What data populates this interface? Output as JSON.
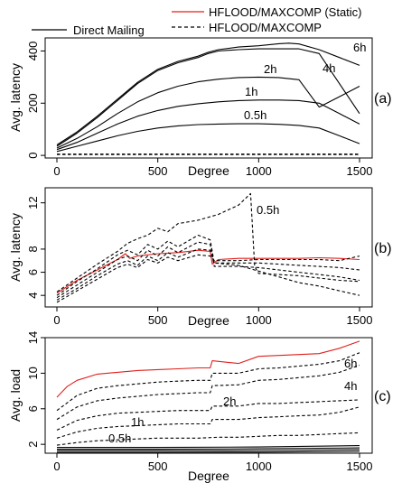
{
  "legend": {
    "entries": [
      {
        "label": "Direct Mailing",
        "style": "solid",
        "color": "#000000"
      },
      {
        "label": "HFLOOD/MAXCOMP (Static)",
        "style": "solid",
        "color": "#e0201b"
      },
      {
        "label": "HFLOOD/MAXCOMP",
        "style": "dashed",
        "color": "#000000"
      }
    ]
  },
  "chart_data": [
    {
      "type": "line",
      "panel_label": "(a)",
      "ylabel": "Avg. latency",
      "xlabel": "Degree",
      "xlim": [
        0,
        1500
      ],
      "ylim": [
        -10,
        450
      ],
      "x_ticks": [
        0,
        500,
        1000,
        1500
      ],
      "y_ticks": [
        0,
        200,
        400
      ],
      "curve_labels": [
        "6h",
        "4h",
        "2h",
        "1h",
        "0.5h"
      ],
      "series": [
        {
          "label": "6h",
          "style": "solid",
          "x": [
            0,
            100,
            200,
            300,
            400,
            500,
            600,
            700,
            750,
            800,
            900,
            1000,
            1100,
            1150,
            1200,
            1300,
            1400,
            1500
          ],
          "y": [
            40,
            90,
            150,
            215,
            280,
            330,
            360,
            380,
            395,
            405,
            415,
            420,
            428,
            430,
            427,
            405,
            375,
            345
          ]
        },
        {
          "label": "4h",
          "style": "solid",
          "x": [
            0,
            100,
            200,
            300,
            400,
            500,
            600,
            700,
            750,
            800,
            900,
            1000,
            1100,
            1200,
            1300,
            1400,
            1500
          ],
          "y": [
            35,
            85,
            145,
            210,
            275,
            325,
            355,
            375,
            390,
            400,
            405,
            408,
            408,
            408,
            390,
            275,
            160
          ]
        },
        {
          "label": "2h",
          "style": "solid",
          "x": [
            0,
            100,
            200,
            300,
            400,
            500,
            600,
            700,
            800,
            900,
            1000,
            1100,
            1200,
            1300,
            1400,
            1500
          ],
          "y": [
            28,
            65,
            110,
            160,
            205,
            240,
            265,
            282,
            292,
            298,
            300,
            298,
            290,
            185,
            225,
            265
          ]
        },
        {
          "label": "1h",
          "style": "solid",
          "x": [
            0,
            100,
            200,
            300,
            400,
            500,
            600,
            700,
            800,
            900,
            1000,
            1100,
            1200,
            1300,
            1400,
            1500
          ],
          "y": [
            22,
            50,
            85,
            120,
            150,
            172,
            188,
            198,
            205,
            210,
            212,
            212,
            210,
            200,
            160,
            120
          ]
        },
        {
          "label": "0.5h",
          "style": "solid",
          "x": [
            0,
            100,
            200,
            300,
            400,
            500,
            600,
            700,
            800,
            900,
            1000,
            1100,
            1200,
            1300,
            1400,
            1500
          ],
          "y": [
            15,
            35,
            55,
            75,
            92,
            105,
            113,
            118,
            120,
            121,
            121,
            119,
            115,
            105,
            75,
            45
          ]
        },
        {
          "label": "HFLOOD/MAXCOMP",
          "style": "dashed",
          "x": [
            0,
            500,
            1000,
            1500
          ],
          "y": [
            5,
            5,
            5,
            5
          ]
        },
        {
          "label": "HFLOOD/MAXCOMP",
          "style": "dashed",
          "x": [
            0,
            500,
            1000,
            1500
          ],
          "y": [
            3,
            3,
            3,
            3
          ]
        }
      ]
    },
    {
      "type": "line",
      "panel_label": "(b)",
      "ylabel": "Avg. latency",
      "xlabel": "Degree",
      "xlim": [
        0,
        1500
      ],
      "ylim": [
        3,
        13.3
      ],
      "x_ticks": [
        0,
        500,
        1000,
        1500
      ],
      "y_ticks": [
        4,
        6,
        8,
        12
      ],
      "curve_labels": [
        "0.5h"
      ],
      "series": [
        {
          "label": "HFLOOD/MAXCOMP (Static)",
          "style": "solid",
          "color": "#e0201b",
          "x": [
            0,
            100,
            200,
            300,
            340,
            360,
            400,
            500,
            600,
            700,
            760,
            770,
            800,
            900,
            1000,
            1100,
            1200,
            1300,
            1400,
            1500
          ],
          "y": [
            4.2,
            5.3,
            6.2,
            7.1,
            7.6,
            7.2,
            7.4,
            7.6,
            7.7,
            7.9,
            7.8,
            6.7,
            7.1,
            7.2,
            7.2,
            7.2,
            7.2,
            7.25,
            7.2,
            7.1
          ]
        },
        {
          "label": "0.5h",
          "style": "dashed",
          "x": [
            0,
            100,
            200,
            300,
            350,
            400,
            450,
            500,
            550,
            600,
            700,
            800,
            900,
            960,
            980,
            1000,
            1100,
            1200,
            1300,
            1400,
            1500
          ],
          "y": [
            4.3,
            5.5,
            6.7,
            7.8,
            8.5,
            8.9,
            9.2,
            9.8,
            9.5,
            10.2,
            10.5,
            11.0,
            11.8,
            12.8,
            6.5,
            5.9,
            5.8,
            5.7,
            5.5,
            5.3,
            5.2
          ]
        },
        {
          "label": "1h",
          "style": "dashed",
          "x": [
            0,
            100,
            200,
            300,
            350,
            400,
            450,
            500,
            550,
            600,
            700,
            760,
            780,
            900,
            1000,
            1100,
            1200,
            1300,
            1400,
            1500
          ],
          "y": [
            4.0,
            5.2,
            6.3,
            7.5,
            7.9,
            7.5,
            8.4,
            8.0,
            8.7,
            8.2,
            9.2,
            8.8,
            6.8,
            6.6,
            6.1,
            5.6,
            5.1,
            4.8,
            4.4,
            4.0
          ]
        },
        {
          "label": "2h",
          "style": "dashed",
          "x": [
            0,
            100,
            200,
            300,
            350,
            400,
            450,
            500,
            550,
            600,
            700,
            760,
            780,
            900,
            1000,
            1100,
            1200,
            1300,
            1400,
            1500
          ],
          "y": [
            3.8,
            4.9,
            6.0,
            7.1,
            7.4,
            7.0,
            7.9,
            7.4,
            8.2,
            7.7,
            8.6,
            8.4,
            6.5,
            6.5,
            6.4,
            6.2,
            6.0,
            5.8,
            5.6,
            5.3
          ]
        },
        {
          "label": "4h",
          "style": "dashed",
          "x": [
            0,
            100,
            200,
            300,
            350,
            400,
            450,
            500,
            550,
            600,
            700,
            760,
            780,
            900,
            1000,
            1100,
            1200,
            1300,
            1400,
            1500
          ],
          "y": [
            3.6,
            4.6,
            5.7,
            6.7,
            7.0,
            6.6,
            7.4,
            7.0,
            7.7,
            7.3,
            8.0,
            7.9,
            6.8,
            6.8,
            6.8,
            6.7,
            6.6,
            6.5,
            6.4,
            6.2
          ]
        },
        {
          "label": "6h",
          "style": "dashed",
          "x": [
            0,
            100,
            200,
            300,
            350,
            400,
            450,
            500,
            550,
            600,
            700,
            760,
            780,
            900,
            1000,
            1100,
            1200,
            1300,
            1400,
            1500
          ],
          "y": [
            3.4,
            4.4,
            5.4,
            6.4,
            6.7,
            6.4,
            7.1,
            6.8,
            7.3,
            7.0,
            7.5,
            7.4,
            7.0,
            7.0,
            7.1,
            7.1,
            7.1,
            7.1,
            7.0,
            7.4
          ]
        }
      ]
    },
    {
      "type": "line",
      "panel_label": "(c)",
      "ylabel": "Avg. load",
      "xlabel": "Degree",
      "xlim": [
        0,
        1500
      ],
      "ylim": [
        1,
        14
      ],
      "x_ticks": [
        0,
        500,
        1000,
        1500
      ],
      "y_ticks": [
        2,
        6,
        10,
        14
      ],
      "curve_labels": [
        "6h",
        "4h",
        "2h",
        "1h",
        "0.5h"
      ],
      "series": [
        {
          "label": "HFLOOD/MAXCOMP (Static)",
          "style": "solid",
          "color": "#e0201b",
          "x": [
            0,
            50,
            100,
            200,
            300,
            400,
            500,
            600,
            700,
            760,
            770,
            900,
            1000,
            1100,
            1200,
            1300,
            1400,
            1500
          ],
          "y": [
            7.3,
            8.5,
            9.2,
            9.9,
            10.1,
            10.3,
            10.4,
            10.5,
            10.6,
            10.6,
            11.4,
            11.1,
            11.9,
            12.0,
            12.1,
            12.2,
            12.8,
            13.6
          ]
        },
        {
          "label": "6h",
          "style": "dashed",
          "x": [
            0,
            100,
            200,
            300,
            400,
            500,
            600,
            700,
            760,
            770,
            900,
            1000,
            1100,
            1200,
            1300,
            1400,
            1500
          ],
          "y": [
            5.8,
            7.5,
            8.3,
            8.6,
            8.8,
            9.0,
            9.1,
            9.2,
            9.2,
            10.0,
            10.0,
            10.5,
            10.6,
            10.8,
            11.0,
            11.4,
            12.3
          ]
        },
        {
          "label": "4h",
          "style": "dashed",
          "x": [
            0,
            100,
            200,
            300,
            400,
            500,
            600,
            700,
            760,
            770,
            900,
            1000,
            1100,
            1200,
            1300,
            1400,
            1500
          ],
          "y": [
            4.8,
            6.2,
            6.9,
            7.2,
            7.4,
            7.6,
            7.7,
            7.8,
            7.8,
            8.6,
            8.7,
            9.2,
            9.3,
            9.5,
            9.7,
            10.1,
            10.9
          ]
        },
        {
          "label": "2h",
          "style": "dashed",
          "x": [
            0,
            100,
            200,
            300,
            400,
            500,
            600,
            700,
            760,
            770,
            900,
            1000,
            1100,
            1200,
            1300,
            1400,
            1500
          ],
          "y": [
            3.6,
            4.7,
            5.2,
            5.5,
            5.6,
            5.7,
            5.8,
            5.8,
            5.8,
            6.3,
            6.3,
            6.6,
            6.6,
            6.7,
            6.8,
            6.9,
            7.0
          ]
        },
        {
          "label": "1h",
          "style": "dashed",
          "x": [
            0,
            100,
            200,
            300,
            400,
            500,
            600,
            700,
            760,
            770,
            900,
            1000,
            1100,
            1200,
            1300,
            1400,
            1500
          ],
          "y": [
            2.7,
            3.4,
            3.8,
            4.0,
            4.1,
            4.2,
            4.3,
            4.3,
            4.3,
            4.8,
            4.8,
            5.0,
            5.1,
            5.2,
            5.3,
            5.6,
            6.2
          ]
        },
        {
          "label": "0.5h",
          "style": "dashed",
          "x": [
            0,
            100,
            200,
            300,
            400,
            500,
            600,
            700,
            800,
            900,
            1000,
            1100,
            1200,
            1300,
            1400,
            1500
          ],
          "y": [
            1.9,
            2.2,
            2.4,
            2.5,
            2.6,
            2.7,
            2.7,
            2.7,
            2.8,
            2.8,
            2.9,
            3.0,
            3.0,
            3.1,
            3.2,
            3.3
          ]
        },
        {
          "label": "Direct Mailing",
          "style": "solid",
          "x": [
            0,
            500,
            1000,
            1500
          ],
          "y": [
            1.65,
            1.65,
            1.7,
            1.85
          ]
        },
        {
          "label": "Direct Mailing",
          "style": "solid",
          "x": [
            0,
            500,
            1000,
            1500
          ],
          "y": [
            1.45,
            1.45,
            1.5,
            1.6
          ]
        },
        {
          "label": "Direct Mailing",
          "style": "solid",
          "x": [
            0,
            500,
            1000,
            1500
          ],
          "y": [
            1.28,
            1.28,
            1.3,
            1.4
          ]
        },
        {
          "label": "Direct Mailing",
          "style": "solid",
          "x": [
            0,
            500,
            1000,
            1500
          ],
          "y": [
            1.1,
            1.1,
            1.12,
            1.2
          ]
        }
      ]
    }
  ]
}
